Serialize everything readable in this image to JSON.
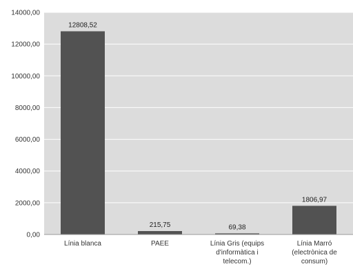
{
  "chart_data": {
    "type": "bar",
    "categories": [
      [
        "Línia blanca"
      ],
      [
        "PAEE"
      ],
      [
        "Línia Gris (equips",
        "d'informàtica i",
        "telecom.)"
      ],
      [
        "Línia Marró",
        "(electrònica de",
        "consum)"
      ]
    ],
    "values": [
      12808.52,
      215.75,
      69.38,
      1806.97
    ],
    "value_labels": [
      "12808,52",
      "215,75",
      "69,38",
      "1806,97"
    ],
    "ylim": [
      0,
      14000
    ],
    "y_ticks": [
      0,
      2000,
      4000,
      6000,
      8000,
      10000,
      12000,
      14000
    ],
    "y_tick_labels": [
      "0,00",
      "2000,00",
      "4000,00",
      "6000,00",
      "8000,00",
      "10000,00",
      "12000,00",
      "14000,00"
    ],
    "title": "",
    "xlabel": "",
    "ylabel": "",
    "grid": true,
    "legend": "none",
    "colors": {
      "plot_background": "#dcdcdc",
      "bar": "#525252",
      "grid": "#ffffff",
      "axis": "#9a9a9a"
    }
  }
}
